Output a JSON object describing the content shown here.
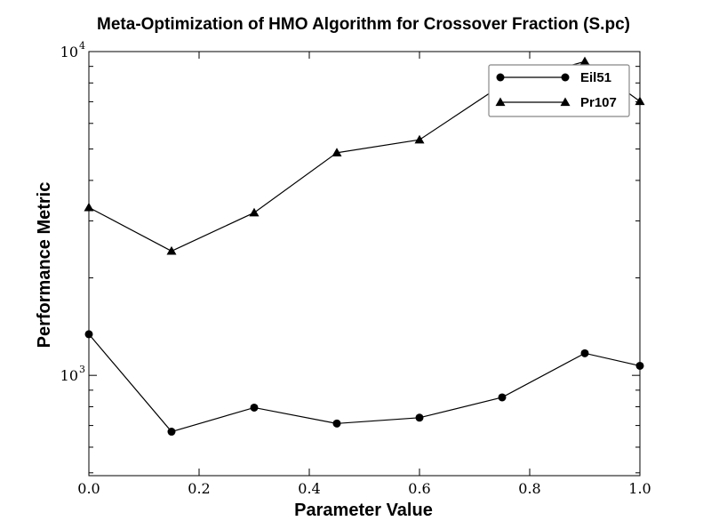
{
  "chart_data": {
    "type": "line",
    "title": "Meta-Optimization of HMO Algorithm for Crossover Fraction (S.pc)",
    "xlabel": "Parameter Value",
    "ylabel": "Performance Metric",
    "xlim": [
      0.0,
      1.0
    ],
    "ylim": [
      490,
      10000
    ],
    "yscale": "log",
    "x_ticks": [
      {
        "value": 0.0,
        "label": "0.0"
      },
      {
        "value": 0.2,
        "label": "0.2"
      },
      {
        "value": 0.4,
        "label": "0.4"
      },
      {
        "value": 0.6,
        "label": "0.6"
      },
      {
        "value": 0.8,
        "label": "0.8"
      },
      {
        "value": 1.0,
        "label": "1.0"
      }
    ],
    "y_major_ticks": [
      {
        "value": 1000,
        "base": "10",
        "exponent": "3"
      },
      {
        "value": 10000,
        "base": "10",
        "exponent": "4"
      }
    ],
    "y_minor_ticks": [
      500,
      600,
      700,
      800,
      900,
      2000,
      3000,
      4000,
      5000,
      6000,
      7000,
      8000,
      9000
    ],
    "x": [
      0.0,
      0.15,
      0.3,
      0.45,
      0.6,
      0.75,
      0.9,
      1.0
    ],
    "series": [
      {
        "name": "Eil51",
        "marker": "circle",
        "color": "#000000",
        "values": [
          1340,
          670,
          795,
          710,
          740,
          855,
          1170,
          1070
        ]
      },
      {
        "name": "Pr107",
        "marker": "triangle",
        "color": "#000000",
        "values": [
          3300,
          2420,
          3180,
          4870,
          5340,
          7890,
          9320,
          7020
        ]
      }
    ],
    "legend_position": "top-right",
    "grid": false
  }
}
